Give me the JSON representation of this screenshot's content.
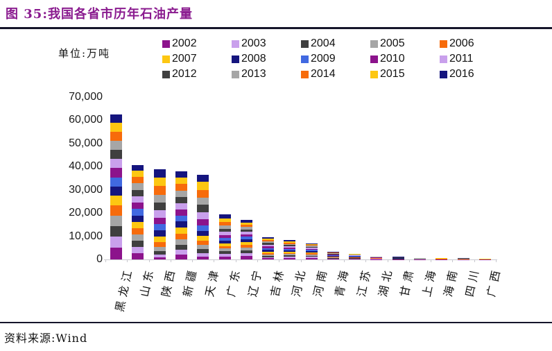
{
  "figure": {
    "title": "图 35:我国各省市历年石油产量",
    "unit_label": "单位:万吨",
    "source_label": "资料来源:Wind"
  },
  "chart_data": {
    "type": "bar",
    "stacked": true,
    "title": "我国各省市历年石油产量",
    "unit": "万吨",
    "legend_position": "top",
    "grid": false,
    "ylim": [
      0,
      70000
    ],
    "yticks": [
      0,
      10000,
      20000,
      30000,
      40000,
      50000,
      60000,
      70000
    ],
    "categories": [
      "黑龙江",
      "山东",
      "陕西",
      "新疆",
      "天津",
      "广东",
      "辽宁",
      "吉林",
      "河北",
      "河南",
      "青海",
      "江苏",
      "湖北",
      "甘肃",
      "上海",
      "海南",
      "四川",
      "广西"
    ],
    "series": [
      {
        "name": "2002",
        "color": "#8c138c",
        "values": [
          5013,
          2670,
          950,
          2000,
          1300,
          1250,
          1350,
          450,
          580,
          560,
          210,
          160,
          95,
          70,
          38,
          30,
          28,
          25
        ]
      },
      {
        "name": "2003",
        "color": "#c9a0ec",
        "values": [
          4840,
          2666,
          1200,
          2100,
          1450,
          1200,
          1320,
          500,
          570,
          540,
          215,
          165,
          94,
          71,
          39,
          32,
          29,
          26
        ]
      },
      {
        "name": "2004",
        "color": "#3f3f3f",
        "values": [
          4640,
          2674,
          1500,
          2230,
          1650,
          1150,
          1280,
          550,
          560,
          530,
          220,
          170,
          93,
          72,
          40,
          34,
          30,
          27
        ]
      },
      {
        "name": "2005",
        "color": "#a6a6a6",
        "values": [
          4495,
          2694,
          1800,
          2400,
          1800,
          1100,
          1250,
          600,
          560,
          520,
          222,
          172,
          92,
          73,
          40,
          35,
          31,
          28
        ]
      },
      {
        "name": "2006",
        "color": "#f76b0b",
        "values": [
          4341,
          2712,
          2100,
          2450,
          1900,
          1050,
          1220,
          650,
          560,
          500,
          225,
          175,
          91,
          74,
          40,
          36,
          32,
          29
        ]
      },
      {
        "name": "2007",
        "color": "#fdc712",
        "values": [
          4170,
          2766,
          2350,
          2600,
          2000,
          1100,
          1180,
          700,
          560,
          490,
          220,
          178,
          90,
          75,
          41,
          37,
          33,
          30
        ]
      },
      {
        "name": "2008",
        "color": "#15157e",
        "values": [
          4020,
          2774,
          2550,
          2715,
          2200,
          1150,
          1150,
          720,
          560,
          480,
          222,
          180,
          89,
          76,
          41,
          38,
          34,
          31
        ]
      },
      {
        "name": "2009",
        "color": "#4169e1",
        "values": [
          3912,
          2770,
          2700,
          2513,
          2350,
          1200,
          1100,
          700,
          550,
          470,
          224,
          178,
          88,
          77,
          41,
          38,
          34,
          31
        ]
      },
      {
        "name": "2010",
        "color": "#8c138c",
        "values": [
          3945,
          2766,
          2900,
          2560,
          2800,
          1300,
          1080,
          730,
          550,
          460,
          226,
          176,
          87,
          78,
          41,
          38,
          34,
          31
        ]
      },
      {
        "name": "2011",
        "color": "#c9a0ec",
        "values": [
          3910,
          2770,
          3100,
          2680,
          3000,
          1350,
          1050,
          750,
          560,
          450,
          228,
          174,
          86,
          79,
          41,
          38,
          34,
          31
        ]
      },
      {
        "name": "2012",
        "color": "#3f3f3f",
        "values": [
          4000,
          2775,
          3300,
          2730,
          3100,
          1400,
          1030,
          720,
          570,
          440,
          230,
          172,
          85,
          80,
          41,
          38,
          34,
          31
        ]
      },
      {
        "name": "2013",
        "color": "#a6a6a6",
        "values": [
          4000,
          2790,
          3500,
          2760,
          3200,
          1450,
          1010,
          700,
          580,
          430,
          232,
          170,
          84,
          81,
          40,
          38,
          34,
          31
        ]
      },
      {
        "name": "2014",
        "color": "#f76b0b",
        "values": [
          3850,
          2786,
          3650,
          2800,
          3300,
          1500,
          1000,
          680,
          580,
          420,
          230,
          168,
          83,
          82,
          40,
          37,
          33,
          30
        ]
      },
      {
        "name": "2015",
        "color": "#fdc712",
        "values": [
          3839,
          2810,
          3750,
          2850,
          3500,
          1600,
          990,
          650,
          570,
          400,
          230,
          165,
          82,
          83,
          39,
          36,
          32,
          29
        ]
      },
      {
        "name": "2016",
        "color": "#15157e",
        "values": [
          3656,
          2388,
          3600,
          2650,
          3100,
          1800,
          980,
          550,
          490,
          330,
          220,
          160,
          80,
          84,
          38,
          35,
          30,
          28
        ]
      }
    ]
  }
}
